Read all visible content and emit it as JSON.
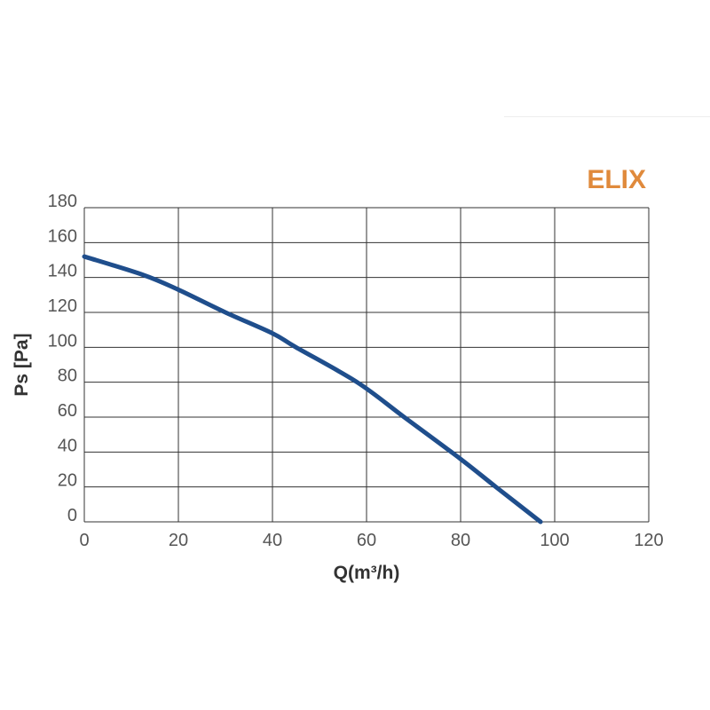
{
  "chart_data": {
    "type": "line",
    "title": "ELIX",
    "xlabel": "Q(m³/h)",
    "ylabel": "Ps [Pa]",
    "xlim": [
      0,
      120
    ],
    "ylim": [
      0,
      180
    ],
    "xticks": [
      0,
      20,
      40,
      60,
      80,
      100,
      120
    ],
    "yticks": [
      0,
      20,
      40,
      60,
      80,
      100,
      120,
      140,
      160,
      180
    ],
    "grid": true,
    "series": [
      {
        "color": "#1f4e8c",
        "x": [
          0,
          12.5,
          20,
          30,
          40,
          45,
          58,
          68,
          80,
          87.5,
          97
        ],
        "y": [
          152,
          141.5,
          133,
          120,
          108,
          100,
          80,
          60,
          36,
          20,
          0
        ]
      }
    ],
    "colors": {
      "title": "#e08a3c",
      "curve": "#1f4e8c",
      "grid": "#333333"
    }
  }
}
